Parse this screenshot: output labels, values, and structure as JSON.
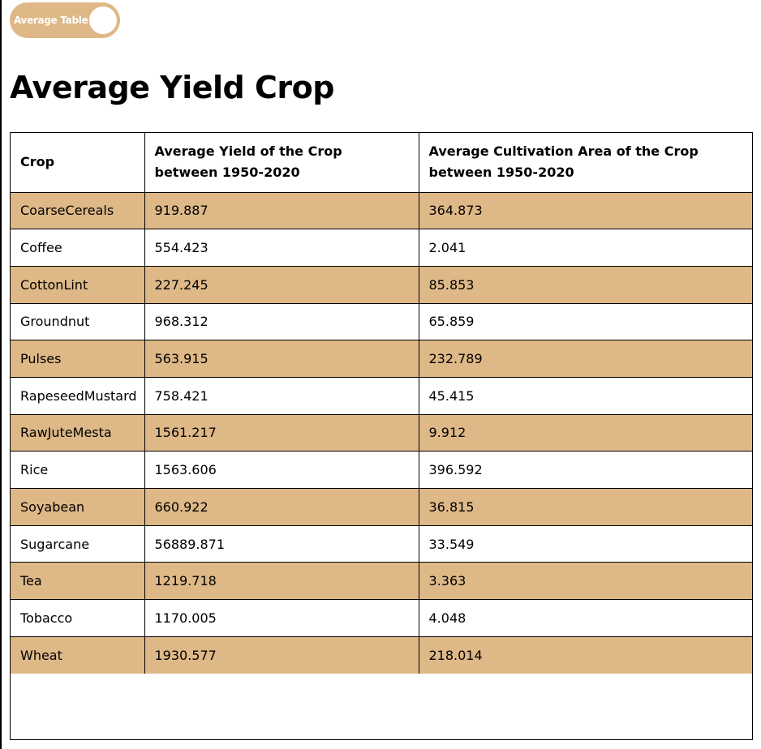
{
  "toggle": {
    "label": "Average Table"
  },
  "page": {
    "title": "Average Yield Crop"
  },
  "table": {
    "headers": [
      "Crop",
      "Average Yield of the Crop between 1950-2020",
      "Average Cultivation Area of the Crop between 1950-2020"
    ],
    "rows": [
      [
        "CoarseCereals",
        "919.887",
        "364.873"
      ],
      [
        "Coffee",
        "554.423",
        "2.041"
      ],
      [
        "CottonLint",
        "227.245",
        "85.853"
      ],
      [
        "Groundnut",
        "968.312",
        "65.859"
      ],
      [
        "Pulses",
        "563.915",
        "232.789"
      ],
      [
        "RapeseedMustard",
        "758.421",
        "45.415"
      ],
      [
        "RawJuteMesta",
        "1561.217",
        "9.912"
      ],
      [
        "Rice",
        "1563.606",
        "396.592"
      ],
      [
        "Soyabean",
        "660.922",
        "36.815"
      ],
      [
        "Sugarcane",
        "56889.871",
        "33.549"
      ],
      [
        "Tea",
        "1219.718",
        "3.363"
      ],
      [
        "Tobacco",
        "1170.005",
        "4.048"
      ],
      [
        "Wheat",
        "1930.577",
        "218.014"
      ]
    ]
  },
  "colors": {
    "accent": "#deb887",
    "text": "#000000",
    "background": "#ffffff"
  }
}
